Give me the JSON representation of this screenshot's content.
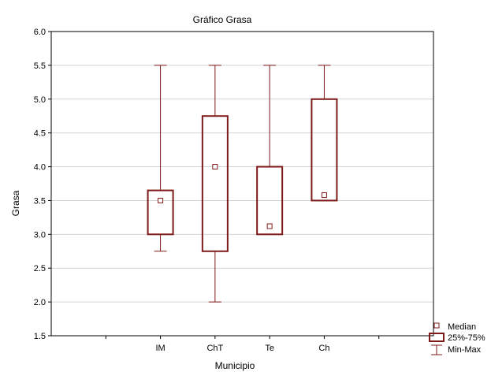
{
  "chart_data": {
    "type": "boxplot",
    "title": "Gráfico Grasa",
    "xlabel": "Municipio",
    "ylabel": "Grasa",
    "ylim": [
      1.5,
      6.0
    ],
    "yticks": [
      "1.5",
      "2.0",
      "2.5",
      "3.0",
      "3.5",
      "4.0",
      "4.5",
      "5.0",
      "5.5",
      "6.0"
    ],
    "grid": true,
    "legend_position": "bottom-right",
    "categories": [
      "IM",
      "ChT",
      "Te",
      "Ch"
    ],
    "boxes": [
      {
        "category": "IM",
        "min": 2.75,
        "q1": 3.0,
        "median": 3.5,
        "q3": 3.65,
        "max": 5.5
      },
      {
        "category": "ChT",
        "min": 2.0,
        "q1": 2.75,
        "median": 4.0,
        "q3": 4.75,
        "max": 5.5
      },
      {
        "category": "Te",
        "min": 3.0,
        "q1": 3.0,
        "median": 3.12,
        "q3": 4.0,
        "max": 5.5
      },
      {
        "category": "Ch",
        "min": 3.5,
        "q1": 3.5,
        "median": 3.58,
        "q3": 5.0,
        "max": 5.5
      }
    ],
    "legend": [
      "Median",
      "25%-75%",
      "Min-Max"
    ],
    "colors": {
      "box": "#7f1a1a",
      "grid": "#d4d4d4",
      "axis": "#000000"
    }
  }
}
